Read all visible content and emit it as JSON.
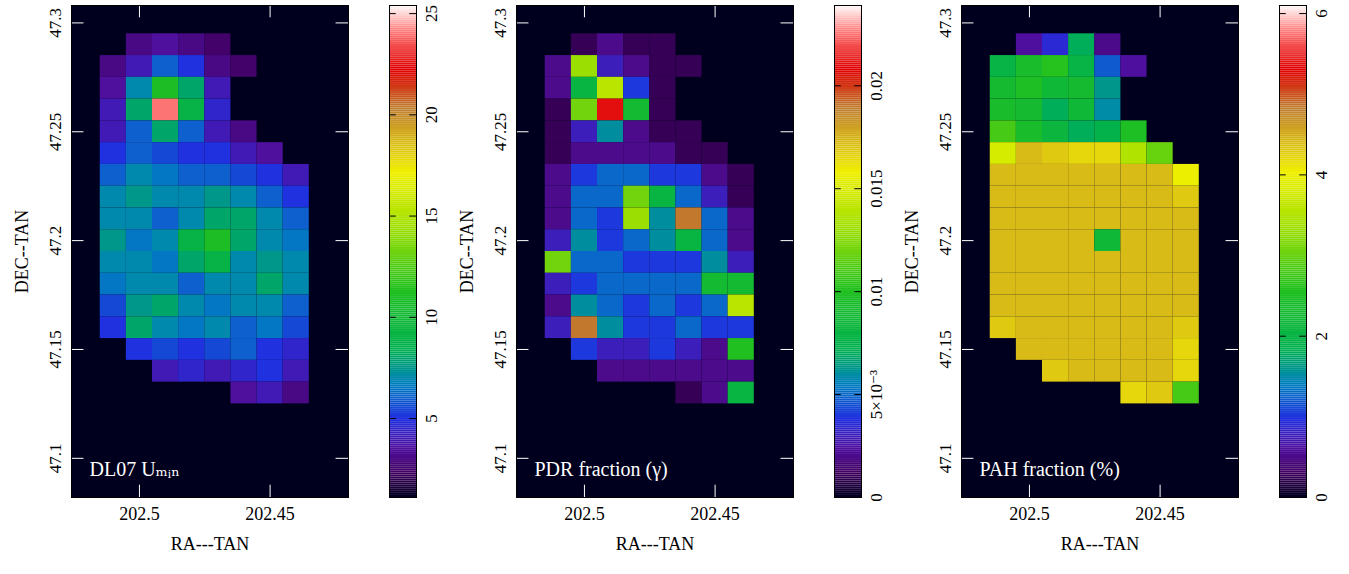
{
  "chart_data": [
    {
      "type": "heatmap",
      "title": "DL07 Uₘᵢₙ",
      "xlabel": "RA---TAN",
      "ylabel": "DEC--TAN",
      "xlim": [
        202.526,
        202.42
      ],
      "ylim": [
        47.082,
        47.308
      ],
      "xticks": [
        202.5,
        202.45
      ],
      "yticks": [
        47.1,
        47.15,
        47.2,
        47.25,
        47.3
      ],
      "x": [
        202.51,
        202.5,
        202.49,
        202.48,
        202.47,
        202.46,
        202.45,
        202.44
      ],
      "y": [
        47.29,
        47.28,
        47.27,
        47.26,
        47.25,
        47.24,
        47.23,
        47.22,
        47.21,
        47.2,
        47.19,
        47.18,
        47.17,
        47.16,
        47.15,
        47.14,
        47.13
      ],
      "cells": [
        [
          null,
          3,
          3.5,
          3,
          2.5,
          null,
          null,
          null
        ],
        [
          3,
          4,
          6,
          5,
          3,
          2.5,
          null,
          null
        ],
        [
          3.5,
          7,
          11,
          8,
          4,
          null,
          null,
          null
        ],
        [
          4,
          8,
          24,
          9,
          4.5,
          null,
          null,
          null
        ],
        [
          4,
          6,
          8,
          6,
          4,
          3,
          null,
          null
        ],
        [
          5,
          6,
          5.5,
          5,
          5,
          4,
          3.5,
          null
        ],
        [
          6,
          7,
          6.5,
          6,
          6,
          5.5,
          5,
          4
        ],
        [
          7,
          7.5,
          7,
          7,
          7.5,
          7,
          6,
          5
        ],
        [
          7,
          7,
          6,
          7,
          8,
          8,
          7,
          6
        ],
        [
          7.5,
          6.5,
          7,
          9,
          11,
          8,
          7,
          6.5
        ],
        [
          7,
          7,
          6.5,
          8,
          9,
          7,
          7.5,
          7
        ],
        [
          6.5,
          7,
          7,
          6,
          7,
          7,
          8,
          7
        ],
        [
          5.5,
          7.5,
          8,
          7,
          6.5,
          7,
          7,
          6
        ],
        [
          5,
          8,
          7,
          6.5,
          7,
          6,
          6.5,
          5.5
        ],
        [
          null,
          5,
          5.5,
          5,
          5.5,
          6,
          5,
          4.5
        ],
        [
          null,
          null,
          4,
          4.5,
          4,
          4.5,
          5,
          4
        ],
        [
          null,
          null,
          null,
          null,
          null,
          3.5,
          4,
          3
        ]
      ],
      "colorbar": {
        "range": [
          1.1,
          25.4
        ],
        "ticks": [
          5,
          10,
          15,
          20,
          25
        ]
      }
    },
    {
      "type": "heatmap",
      "title": "PDR fraction (γ)",
      "xlabel": "RA---TAN",
      "ylabel": "DEC--TAN",
      "xlim": [
        202.526,
        202.42
      ],
      "ylim": [
        47.082,
        47.308
      ],
      "xticks": [
        202.5,
        202.45
      ],
      "yticks": [
        47.1,
        47.15,
        47.2,
        47.25,
        47.3
      ],
      "x": [
        202.51,
        202.5,
        202.49,
        202.48,
        202.47,
        202.46,
        202.45,
        202.44
      ],
      "y": [
        47.29,
        47.28,
        47.27,
        47.26,
        47.25,
        47.24,
        47.23,
        47.22,
        47.21,
        47.2,
        47.19,
        47.18,
        47.17,
        47.16,
        47.15,
        47.14,
        47.13
      ],
      "cells": [
        [
          null,
          0.001,
          0.002,
          0.001,
          0.001,
          null,
          null,
          null
        ],
        [
          0.002,
          0.013,
          0.003,
          0.002,
          0.001,
          0.001,
          null,
          null
        ],
        [
          0.002,
          0.008,
          0.014,
          0.004,
          0.001,
          null,
          null,
          null
        ],
        [
          0.001,
          0.012,
          0.021,
          0.009,
          0.001,
          null,
          null,
          null
        ],
        [
          0.001,
          0.003,
          0.006,
          0.002,
          0.001,
          0.001,
          null,
          null
        ],
        [
          0.001,
          0.002,
          0.002,
          0.002,
          0.002,
          0.001,
          0.001,
          null
        ],
        [
          0.002,
          0.004,
          0.005,
          0.005,
          0.004,
          0.004,
          0.002,
          0.001
        ],
        [
          0.002,
          0.005,
          0.005,
          0.012,
          0.008,
          0.005,
          0.003,
          0.001
        ],
        [
          0.002,
          0.005,
          0.004,
          0.013,
          0.006,
          0.019,
          0.005,
          0.002
        ],
        [
          0.003,
          0.006,
          0.004,
          0.005,
          0.006,
          0.008,
          0.005,
          0.002
        ],
        [
          0.012,
          0.005,
          0.005,
          0.004,
          0.004,
          0.004,
          0.006,
          0.003
        ],
        [
          0.003,
          0.004,
          0.005,
          0.005,
          0.005,
          0.005,
          0.009,
          0.009
        ],
        [
          0.002,
          0.006,
          0.005,
          0.004,
          0.005,
          0.004,
          0.005,
          0.014
        ],
        [
          0.003,
          0.019,
          0.006,
          0.004,
          0.004,
          0.005,
          0.004,
          0.004
        ],
        [
          null,
          0.004,
          0.003,
          0.003,
          0.004,
          0.003,
          0.002,
          0.01
        ],
        [
          null,
          null,
          0.002,
          0.002,
          0.002,
          0.002,
          0.002,
          0.002
        ],
        [
          null,
          null,
          null,
          null,
          null,
          0.001,
          0.002,
          0.008
        ]
      ],
      "colorbar": {
        "range": [
          0,
          0.0239
        ],
        "ticks": [
          0,
          {
            "value": 0.005,
            "label": "5×10⁻³"
          },
          0.01,
          0.015,
          0.02
        ]
      }
    },
    {
      "type": "heatmap",
      "title": "PAH fraction (%)",
      "xlabel": "RA---TAN",
      "ylabel": "DEC--TAN",
      "xlim": [
        202.526,
        202.42
      ],
      "ylim": [
        47.082,
        47.308
      ],
      "xticks": [
        202.5,
        202.45
      ],
      "yticks": [
        47.1,
        47.15,
        47.2,
        47.25,
        47.3
      ],
      "x": [
        202.51,
        202.5,
        202.49,
        202.48,
        202.47,
        202.46,
        202.45,
        202.44
      ],
      "y": [
        47.29,
        47.28,
        47.27,
        47.26,
        47.25,
        47.24,
        47.23,
        47.22,
        47.21,
        47.2,
        47.19,
        47.18,
        47.17,
        47.16,
        47.15,
        47.14,
        47.13
      ],
      "cells": [
        [
          null,
          0.6,
          0.9,
          1.8,
          0.5,
          null,
          null,
          null
        ],
        [
          2.0,
          2.4,
          2.6,
          2.0,
          1.2,
          0.6,
          null,
          null
        ],
        [
          2.3,
          2.5,
          2.2,
          2.3,
          1.6,
          null,
          null,
          null
        ],
        [
          2.4,
          2.3,
          1.8,
          2.2,
          1.5,
          null,
          null,
          null
        ],
        [
          2.8,
          2.4,
          2.1,
          1.8,
          1.9,
          2.5,
          null,
          null
        ],
        [
          3.8,
          4.4,
          4.3,
          4.2,
          4.2,
          3.5,
          3.0,
          null
        ],
        [
          4.4,
          4.4,
          4.4,
          4.4,
          4.4,
          4.4,
          4.4,
          4.0
        ],
        [
          4.4,
          4.4,
          4.4,
          4.4,
          4.4,
          4.4,
          4.4,
          4.3
        ],
        [
          4.4,
          4.4,
          4.4,
          4.4,
          4.4,
          4.4,
          4.4,
          4.4
        ],
        [
          4.4,
          4.4,
          4.4,
          4.4,
          2.2,
          4.4,
          4.4,
          4.4
        ],
        [
          4.4,
          4.4,
          4.4,
          4.4,
          4.4,
          4.4,
          4.4,
          4.4
        ],
        [
          4.4,
          4.4,
          4.4,
          4.4,
          4.4,
          4.4,
          4.4,
          4.4
        ],
        [
          4.4,
          4.4,
          4.4,
          4.4,
          4.4,
          4.4,
          4.4,
          4.4
        ],
        [
          4.3,
          4.4,
          4.4,
          4.4,
          4.4,
          4.4,
          4.4,
          4.3
        ],
        [
          null,
          4.4,
          4.4,
          4.4,
          4.4,
          4.4,
          4.4,
          4.2
        ],
        [
          null,
          null,
          4.3,
          4.4,
          4.4,
          4.4,
          4.4,
          4.2
        ],
        [
          null,
          null,
          null,
          null,
          null,
          4.2,
          4.3,
          2.8
        ]
      ],
      "colorbar": {
        "range": [
          0,
          6.1
        ],
        "ticks": [
          0,
          2,
          4,
          6
        ]
      }
    }
  ]
}
